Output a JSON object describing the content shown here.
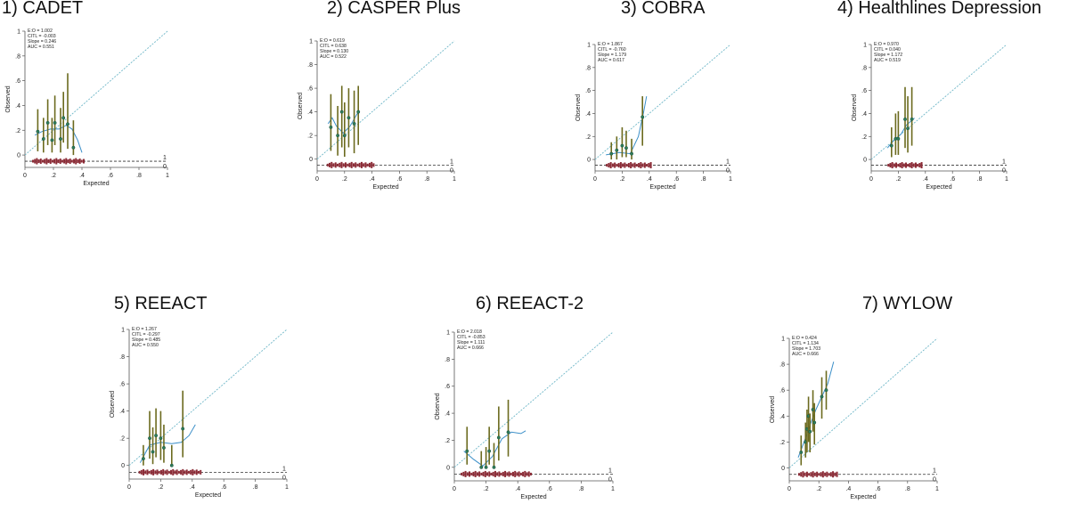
{
  "chart_data": [
    {
      "type": "scatter",
      "title": "1)  CADET",
      "xlabel": "Expected",
      "ylabel": "Observed",
      "xlim": [
        0,
        1
      ],
      "ylim": [
        -0.1,
        1
      ],
      "xticks": [
        "0",
        ".2",
        ".4",
        ".6",
        ".8",
        "1"
      ],
      "yticks": [
        "0",
        ".2",
        ".4",
        ".6",
        ".8",
        "1"
      ],
      "rug_labels": [
        "1",
        "0"
      ],
      "stats": [
        "E:O = 1.002",
        "CITL = -0.003",
        "Slope = 0.246",
        "AUC = 0.551"
      ],
      "groups": [
        {
          "x": 0.09,
          "y": 0.19,
          "lo": 0.03,
          "hi": 0.37
        },
        {
          "x": 0.13,
          "y": 0.13,
          "lo": 0.02,
          "hi": 0.3
        },
        {
          "x": 0.16,
          "y": 0.26,
          "lo": 0.08,
          "hi": 0.45
        },
        {
          "x": 0.19,
          "y": 0.12,
          "lo": 0.02,
          "hi": 0.3
        },
        {
          "x": 0.21,
          "y": 0.26,
          "lo": 0.08,
          "hi": 0.48
        },
        {
          "x": 0.25,
          "y": 0.13,
          "lo": 0.02,
          "hi": 0.38
        },
        {
          "x": 0.27,
          "y": 0.3,
          "lo": 0.1,
          "hi": 0.51
        },
        {
          "x": 0.3,
          "y": 0.25,
          "lo": 0.05,
          "hi": 0.66
        },
        {
          "x": 0.34,
          "y": 0.06,
          "lo": 0.0,
          "hi": 0.28
        }
      ],
      "smooth": [
        [
          0.07,
          0.16
        ],
        [
          0.12,
          0.19
        ],
        [
          0.18,
          0.21
        ],
        [
          0.24,
          0.21
        ],
        [
          0.29,
          0.24
        ],
        [
          0.33,
          0.21
        ],
        [
          0.37,
          0.12
        ],
        [
          0.4,
          0.02
        ]
      ],
      "rug_range": [
        0.05,
        0.42
      ]
    },
    {
      "type": "scatter",
      "title": "2) CASPER Plus",
      "xlabel": "Expected",
      "ylabel": "Observed",
      "xlim": [
        0,
        1
      ],
      "ylim": [
        -0.1,
        1
      ],
      "xticks": [
        "0",
        ".2",
        ".4",
        ".6",
        ".8",
        "1"
      ],
      "yticks": [
        "0",
        ".2",
        ".4",
        ".6",
        ".8",
        "1"
      ],
      "rug_labels": [
        "1",
        "0"
      ],
      "stats": [
        "E:O = 0.619",
        "CITL = 0.638",
        "Slope = 0.130",
        "AUC = 0.522"
      ],
      "groups": [
        {
          "x": 0.1,
          "y": 0.27,
          "lo": 0.07,
          "hi": 0.55
        },
        {
          "x": 0.15,
          "y": 0.2,
          "lo": 0.03,
          "hi": 0.45
        },
        {
          "x": 0.18,
          "y": 0.4,
          "lo": 0.1,
          "hi": 0.62
        },
        {
          "x": 0.2,
          "y": 0.2,
          "lo": 0.02,
          "hi": 0.48
        },
        {
          "x": 0.23,
          "y": 0.35,
          "lo": 0.1,
          "hi": 0.6
        },
        {
          "x": 0.27,
          "y": 0.3,
          "lo": 0.05,
          "hi": 0.58
        },
        {
          "x": 0.3,
          "y": 0.4,
          "lo": 0.12,
          "hi": 0.62
        }
      ],
      "smooth": [
        [
          0.08,
          0.3
        ],
        [
          0.11,
          0.35
        ],
        [
          0.14,
          0.28
        ],
        [
          0.19,
          0.22
        ],
        [
          0.24,
          0.28
        ],
        [
          0.3,
          0.4
        ]
      ],
      "rug_range": [
        0.07,
        0.42
      ]
    },
    {
      "type": "scatter",
      "title": "3) COBRA",
      "xlabel": "Expected",
      "ylabel": "Observed",
      "xlim": [
        0,
        1
      ],
      "ylim": [
        -0.1,
        1
      ],
      "xticks": [
        "0",
        ".2",
        ".4",
        ".6",
        ".8",
        "1"
      ],
      "yticks": [
        "0",
        ".2",
        ".4",
        ".6",
        ".8",
        "1"
      ],
      "rug_labels": [
        "1",
        "0"
      ],
      "stats": [
        "E:O = 1.867",
        "CITL = -0.760",
        "Slope = 1.179",
        "AUC = 0.617"
      ],
      "groups": [
        {
          "x": 0.12,
          "y": 0.05,
          "lo": 0.0,
          "hi": 0.15
        },
        {
          "x": 0.16,
          "y": 0.08,
          "lo": 0.0,
          "hi": 0.2
        },
        {
          "x": 0.2,
          "y": 0.12,
          "lo": 0.02,
          "hi": 0.28
        },
        {
          "x": 0.23,
          "y": 0.1,
          "lo": 0.02,
          "hi": 0.25
        },
        {
          "x": 0.27,
          "y": 0.05,
          "lo": 0.0,
          "hi": 0.18
        },
        {
          "x": 0.35,
          "y": 0.37,
          "lo": 0.12,
          "hi": 0.55
        }
      ],
      "smooth": [
        [
          0.08,
          0.04
        ],
        [
          0.18,
          0.06
        ],
        [
          0.26,
          0.05
        ],
        [
          0.32,
          0.2
        ],
        [
          0.36,
          0.42
        ],
        [
          0.38,
          0.55
        ]
      ],
      "rug_range": [
        0.08,
        0.42
      ]
    },
    {
      "type": "scatter",
      "title": "4) Healthlines Depression",
      "xlabel": "Expected",
      "ylabel": "Observed",
      "xlim": [
        0,
        1
      ],
      "ylim": [
        -0.1,
        1
      ],
      "xticks": [
        "0",
        ".2",
        ".4",
        ".6",
        ".8",
        "1"
      ],
      "yticks": [
        "0",
        ".2",
        ".4",
        ".6",
        ".8",
        "1"
      ],
      "rug_labels": [
        "1",
        "0"
      ],
      "stats": [
        "E:O = 0.970",
        "CITL = 0.040",
        "Slope = 1.172",
        "AUC = 0.519"
      ],
      "groups": [
        {
          "x": 0.15,
          "y": 0.12,
          "lo": 0.02,
          "hi": 0.28
        },
        {
          "x": 0.18,
          "y": 0.18,
          "lo": 0.04,
          "hi": 0.4
        },
        {
          "x": 0.2,
          "y": 0.18,
          "lo": 0.04,
          "hi": 0.42
        },
        {
          "x": 0.25,
          "y": 0.35,
          "lo": 0.1,
          "hi": 0.63
        },
        {
          "x": 0.27,
          "y": 0.27,
          "lo": 0.06,
          "hi": 0.55
        },
        {
          "x": 0.3,
          "y": 0.35,
          "lo": 0.12,
          "hi": 0.63
        }
      ],
      "smooth": [
        [
          0.12,
          0.1
        ],
        [
          0.17,
          0.17
        ],
        [
          0.22,
          0.22
        ],
        [
          0.26,
          0.3
        ],
        [
          0.32,
          0.36
        ]
      ],
      "rug_range": [
        0.12,
        0.38
      ]
    },
    {
      "type": "scatter",
      "title": "5) REEACT",
      "xlabel": "Expected",
      "ylabel": "Observed",
      "xlim": [
        0,
        1
      ],
      "ylim": [
        -0.1,
        1
      ],
      "xticks": [
        "0",
        ".2",
        ".4",
        ".6",
        ".8",
        "1"
      ],
      "yticks": [
        "0",
        ".2",
        ".4",
        ".6",
        ".8",
        "1"
      ],
      "rug_labels": [
        "1",
        "0"
      ],
      "stats": [
        "E:O = 1.267",
        "CITL = -0.297",
        "Slope = 0.485",
        "AUC = 0.550"
      ],
      "groups": [
        {
          "x": 0.09,
          "y": 0.05,
          "lo": 0.0,
          "hi": 0.15
        },
        {
          "x": 0.13,
          "y": 0.2,
          "lo": 0.05,
          "hi": 0.4
        },
        {
          "x": 0.15,
          "y": 0.1,
          "lo": 0.01,
          "hi": 0.28
        },
        {
          "x": 0.17,
          "y": 0.22,
          "lo": 0.06,
          "hi": 0.42
        },
        {
          "x": 0.2,
          "y": 0.2,
          "lo": 0.04,
          "hi": 0.4
        },
        {
          "x": 0.22,
          "y": 0.13,
          "lo": 0.02,
          "hi": 0.3
        },
        {
          "x": 0.27,
          "y": 0.0,
          "lo": 0.0,
          "hi": 0.15
        },
        {
          "x": 0.34,
          "y": 0.27,
          "lo": 0.06,
          "hi": 0.55
        }
      ],
      "smooth": [
        [
          0.07,
          0.02
        ],
        [
          0.13,
          0.15
        ],
        [
          0.2,
          0.17
        ],
        [
          0.27,
          0.16
        ],
        [
          0.33,
          0.17
        ],
        [
          0.38,
          0.22
        ],
        [
          0.42,
          0.3
        ]
      ],
      "rug_range": [
        0.06,
        0.46
      ]
    },
    {
      "type": "scatter",
      "title": "6) REEACT-2",
      "xlabel": "Expected",
      "ylabel": "Observed",
      "xlim": [
        0,
        1
      ],
      "ylim": [
        -0.1,
        1
      ],
      "xticks": [
        "0",
        ".2",
        ".4",
        ".6",
        ".8",
        "1"
      ],
      "yticks": [
        "0",
        ".2",
        ".4",
        ".6",
        ".8",
        "1"
      ],
      "rug_labels": [
        "1",
        "0"
      ],
      "stats": [
        "E:O = 2.018",
        "CITL = -0.853",
        "Slope = 1.111",
        "AUC = 0.666"
      ],
      "groups": [
        {
          "x": 0.08,
          "y": 0.12,
          "lo": 0.02,
          "hi": 0.3
        },
        {
          "x": 0.17,
          "y": 0.0,
          "lo": 0.0,
          "hi": 0.12
        },
        {
          "x": 0.2,
          "y": 0.0,
          "lo": 0.0,
          "hi": 0.15
        },
        {
          "x": 0.22,
          "y": 0.12,
          "lo": 0.02,
          "hi": 0.3
        },
        {
          "x": 0.25,
          "y": 0.0,
          "lo": 0.0,
          "hi": 0.18
        },
        {
          "x": 0.28,
          "y": 0.22,
          "lo": 0.05,
          "hi": 0.45
        },
        {
          "x": 0.34,
          "y": 0.26,
          "lo": 0.08,
          "hi": 0.5
        }
      ],
      "smooth": [
        [
          0.06,
          0.12
        ],
        [
          0.12,
          0.06
        ],
        [
          0.18,
          0.01
        ],
        [
          0.24,
          0.08
        ],
        [
          0.3,
          0.21
        ],
        [
          0.36,
          0.26
        ],
        [
          0.42,
          0.25
        ],
        [
          0.45,
          0.27
        ]
      ],
      "rug_range": [
        0.04,
        0.49
      ]
    },
    {
      "type": "scatter",
      "title": "7) WYLOW",
      "xlabel": "Expected",
      "ylabel": "Observed",
      "xlim": [
        0,
        1
      ],
      "ylim": [
        -0.1,
        1
      ],
      "xticks": [
        "0",
        ".2",
        ".4",
        ".6",
        ".8",
        "1"
      ],
      "yticks": [
        "0",
        ".2",
        ".4",
        ".6",
        ".8",
        "1"
      ],
      "rug_labels": [
        "1",
        "0"
      ],
      "stats": [
        "E:O = 0.424",
        "CITL = 1.134",
        "Slope = 1.703",
        "AUC = 0.666"
      ],
      "groups": [
        {
          "x": 0.08,
          "y": 0.12,
          "lo": 0.02,
          "hi": 0.25
        },
        {
          "x": 0.11,
          "y": 0.2,
          "lo": 0.08,
          "hi": 0.35
        },
        {
          "x": 0.12,
          "y": 0.3,
          "lo": 0.12,
          "hi": 0.45
        },
        {
          "x": 0.13,
          "y": 0.4,
          "lo": 0.2,
          "hi": 0.55
        },
        {
          "x": 0.14,
          "y": 0.28,
          "lo": 0.12,
          "hi": 0.42
        },
        {
          "x": 0.16,
          "y": 0.45,
          "lo": 0.28,
          "hi": 0.6
        },
        {
          "x": 0.17,
          "y": 0.35,
          "lo": 0.18,
          "hi": 0.5
        },
        {
          "x": 0.22,
          "y": 0.55,
          "lo": 0.38,
          "hi": 0.7
        },
        {
          "x": 0.25,
          "y": 0.6,
          "lo": 0.45,
          "hi": 0.75
        }
      ],
      "smooth": [
        [
          0.06,
          0.08
        ],
        [
          0.1,
          0.2
        ],
        [
          0.14,
          0.33
        ],
        [
          0.18,
          0.45
        ],
        [
          0.22,
          0.55
        ],
        [
          0.26,
          0.65
        ],
        [
          0.3,
          0.82
        ]
      ],
      "rug_range": [
        0.06,
        0.33
      ]
    }
  ]
}
